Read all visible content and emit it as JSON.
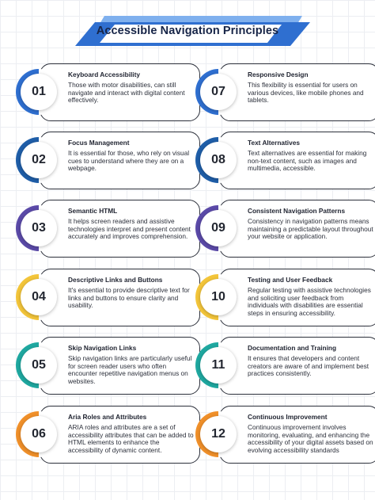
{
  "title": "Accessible Navigation Principles",
  "colors": {
    "banner_dark": "#2f6fd0",
    "banner_light": "#7fb0ee",
    "title_text": "#162447"
  },
  "items": [
    {
      "number": "01",
      "color": "#2f6fd0",
      "title": "Keyboard Accessibility",
      "description": "Those with motor disabilities, can still navigate and interact with digital content effectively."
    },
    {
      "number": "02",
      "color": "#1f5ea8",
      "title": "Focus Management",
      "description": "It is essential for those, who rely on visual cues to understand where they are on a webpage."
    },
    {
      "number": "03",
      "color": "#5b4aa8",
      "title": "Semantic HTML",
      "description": "It helps screen readers and assistive technologies interpret and present content accurately and improves comprehension."
    },
    {
      "number": "04",
      "color": "#f3c53a",
      "title": "Descriptive Links and Buttons",
      "description": "It's essential to provide descriptive text for links and buttons to ensure clarity and usability."
    },
    {
      "number": "05",
      "color": "#1fa8a0",
      "title": "Skip Navigation Links",
      "description": "Skip navigation links are particularly useful for screen reader users who often encounter repetitive navigation menus on websites."
    },
    {
      "number": "06",
      "color": "#f0902a",
      "title": "Aria Roles and Attributes",
      "description": "ARIA roles and attributes are a set of accessibility attributes that can be added to HTML elements to enhance the accessibility of dynamic content."
    },
    {
      "number": "07",
      "color": "#2f6fd0",
      "title": "Responsive Design",
      "description": "This flexibility is essential for users on various devices, like mobile phones and tablets."
    },
    {
      "number": "08",
      "color": "#1f5ea8",
      "title": "Text Alternatives",
      "description": "Text alternatives are essential for making non-text content, such as images and multimedia, accessible."
    },
    {
      "number": "09",
      "color": "#5b4aa8",
      "title": "Consistent Navigation Patterns",
      "description": "Consistency in navigation patterns means maintaining a predictable layout throughout your website or application."
    },
    {
      "number": "10",
      "color": "#f3c53a",
      "title": "Testing and User Feedback",
      "description": "Regular testing with assistive technologies and soliciting user feedback from individuals with disabilities are essential steps in ensuring accessibility."
    },
    {
      "number": "11",
      "color": "#1fa8a0",
      "title": "Documentation and Training",
      "description": "It ensures that developers and content creators are aware of and implement best practices consistently."
    },
    {
      "number": "12",
      "color": "#f0902a",
      "title": "Continuous Improvement",
      "description": "Continuous improvement involves monitoring, evaluating, and enhancing the accessibility of your digital assets based on evolving accessibility standards"
    }
  ]
}
